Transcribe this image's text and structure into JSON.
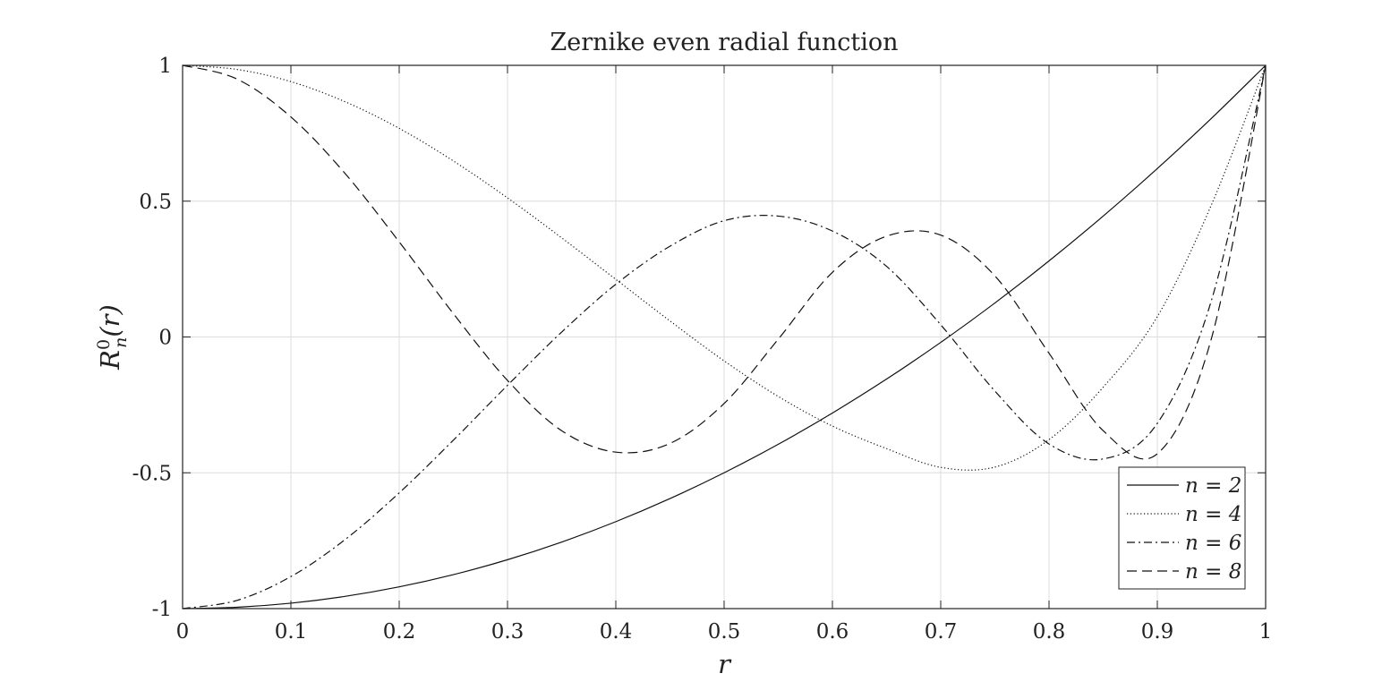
{
  "chart_data": {
    "type": "line",
    "title": "Zernike even radial function",
    "xlabel": "r",
    "ylabel": "R_n^0(r)",
    "ylabel_parts": {
      "base": "R",
      "sub": "n",
      "sup": "0",
      "arg": "(r)"
    },
    "xlim": [
      0,
      1
    ],
    "ylim": [
      -1,
      1
    ],
    "xticks": [
      0,
      0.1,
      0.2,
      0.3,
      0.4,
      0.5,
      0.6,
      0.7,
      0.8,
      0.9,
      1
    ],
    "xtick_labels": [
      "0",
      "0.1",
      "0.2",
      "0.3",
      "0.4",
      "0.5",
      "0.6",
      "0.7",
      "0.8",
      "0.9",
      "1"
    ],
    "yticks": [
      -1,
      -0.5,
      0,
      0.5,
      1
    ],
    "ytick_labels": [
      "-1",
      "-0.5",
      "0",
      "0.5",
      "1"
    ],
    "grid": true,
    "legend_position": "bottom-right",
    "x": [
      0,
      0.05,
      0.1,
      0.15,
      0.2,
      0.25,
      0.3,
      0.35,
      0.4,
      0.45,
      0.5,
      0.55,
      0.6,
      0.65,
      0.7,
      0.75,
      0.8,
      0.85,
      0.9,
      0.95,
      1
    ],
    "series": [
      {
        "name": "n = 2",
        "legend_label": "n = 2",
        "dash": "solid",
        "values": [
          -1,
          -0.995,
          -0.98,
          -0.955,
          -0.92,
          -0.875,
          -0.82,
          -0.755,
          -0.68,
          -0.595,
          -0.5,
          -0.395,
          -0.28,
          -0.155,
          -0.02,
          0.125,
          0.28,
          0.445,
          0.62,
          0.805,
          1
        ]
      },
      {
        "name": "n = 4",
        "legend_label": "n = 4",
        "dash": "dotted",
        "values": [
          1,
          0.985,
          0.94,
          0.866,
          0.768,
          0.648,
          0.512,
          0.365,
          0.212,
          0.059,
          -0.088,
          -0.219,
          -0.328,
          -0.411,
          -0.48,
          -0.479,
          -0.378,
          -0.185,
          0.075,
          0.487,
          1
        ]
      },
      {
        "name": "n = 6",
        "legend_label": "n = 6",
        "dash": "dashdot",
        "values": [
          -1,
          -0.97,
          -0.882,
          -0.746,
          -0.574,
          -0.38,
          -0.178,
          0.018,
          0.194,
          0.334,
          0.428,
          0.445,
          0.39,
          0.26,
          0.045,
          -0.199,
          -0.394,
          -0.449,
          -0.318,
          0.135,
          1
        ]
      },
      {
        "name": "n = 8",
        "legend_label": "n = 8",
        "dash": "dashed",
        "values": [
          1,
          0.95,
          0.81,
          0.602,
          0.35,
          0.086,
          -0.16,
          -0.345,
          -0.424,
          -0.392,
          -0.245,
          -0.008,
          0.238,
          0.371,
          0.375,
          0.225,
          -0.06,
          -0.345,
          -0.43,
          -0.005,
          1
        ]
      }
    ]
  }
}
